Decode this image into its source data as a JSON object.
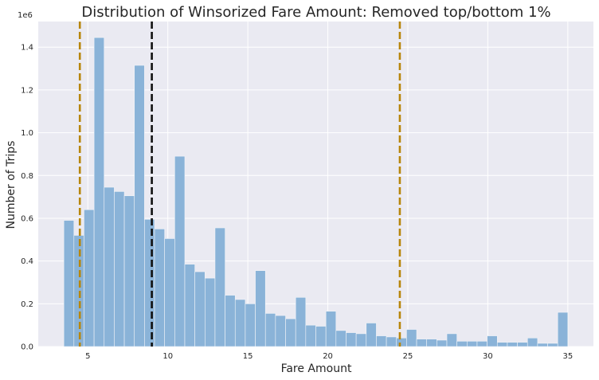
{
  "chart_data": {
    "type": "bar",
    "title": "Distribution of Winsorized Fare Amount: Removed top/bottom 1%",
    "xlabel": "Fare Amount",
    "ylabel": "Number of Trips",
    "y_offset_label": "1e6",
    "xlim": [
      1.9,
      36.6
    ],
    "ylim": [
      0,
      1520000
    ],
    "x_ticks": [
      5,
      10,
      15,
      20,
      25,
      30,
      35
    ],
    "x_tick_labels": [
      "5",
      "10",
      "15",
      "20",
      "25",
      "30",
      "35"
    ],
    "y_ticks": [
      0,
      200000,
      400000,
      600000,
      800000,
      1000000,
      1200000,
      1400000
    ],
    "y_tick_labels": [
      "0.0",
      "0.2",
      "0.4",
      "0.6",
      "0.8",
      "1.0",
      "1.2",
      "1.4"
    ],
    "grid": true,
    "bin_start": 3.5,
    "bin_width": 0.63,
    "values": [
      590000,
      520000,
      640000,
      1445000,
      745000,
      725000,
      705000,
      1315000,
      595000,
      550000,
      505000,
      890000,
      385000,
      350000,
      320000,
      555000,
      240000,
      220000,
      200000,
      355000,
      155000,
      145000,
      130000,
      230000,
      100000,
      95000,
      165000,
      75000,
      65000,
      60000,
      110000,
      50000,
      45000,
      40000,
      80000,
      35000,
      35000,
      30000,
      60000,
      25000,
      25000,
      25000,
      50000,
      20000,
      20000,
      20000,
      40000,
      15000,
      15000,
      160000
    ],
    "bar_color": "#8ab3d8",
    "reference_lines": [
      {
        "x": 4.5,
        "color": "#b8860b"
      },
      {
        "x": 9.0,
        "color": "#111111"
      },
      {
        "x": 24.5,
        "color": "#b8860b"
      }
    ]
  }
}
